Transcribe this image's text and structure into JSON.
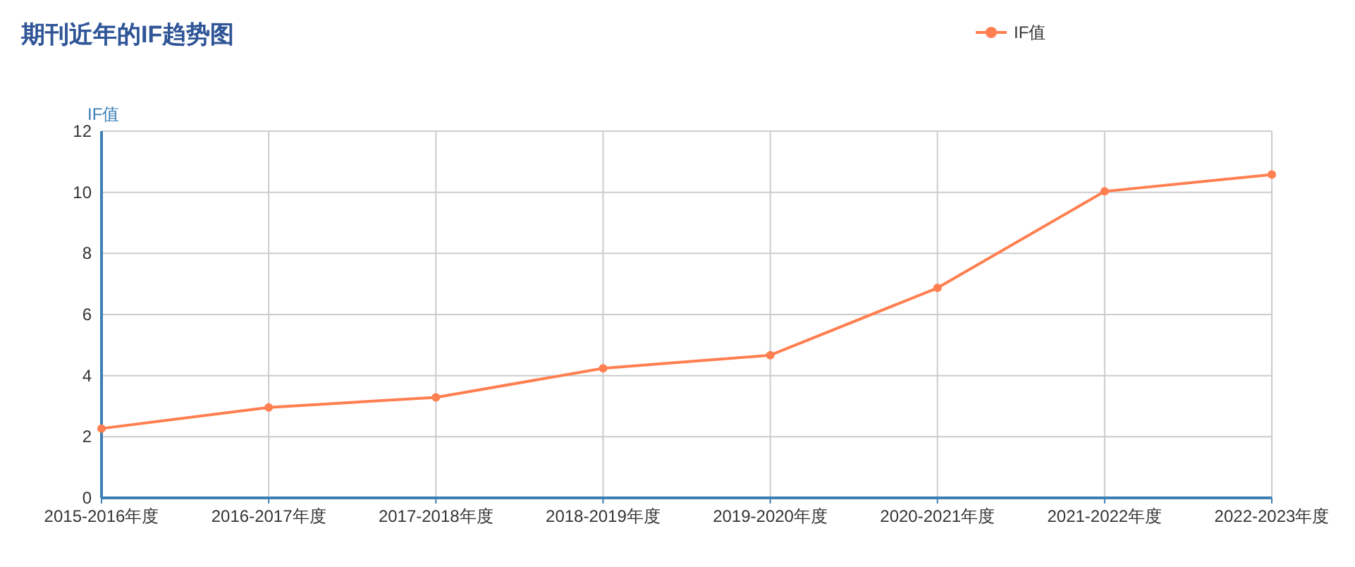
{
  "chart_data": {
    "type": "line",
    "title": "期刊近年的IF趋势图",
    "ylabel": "IF值",
    "categories": [
      "2015-2016年度",
      "2016-2017年度",
      "2017-2018年度",
      "2018-2019年度",
      "2019-2020年度",
      "2020-2021年度",
      "2021-2022年度",
      "2022-2023年度"
    ],
    "series": [
      {
        "name": "IF值",
        "color": "#ff7f50",
        "values": [
          2.27,
          2.96,
          3.29,
          4.24,
          4.67,
          6.87,
          10.03,
          10.58
        ]
      }
    ],
    "ylim": [
      0,
      12
    ],
    "yticks": [
      0,
      2,
      4,
      6,
      8,
      10,
      12
    ],
    "grid": true,
    "legend": "top right",
    "marker": "circle",
    "line_style": "solid"
  }
}
